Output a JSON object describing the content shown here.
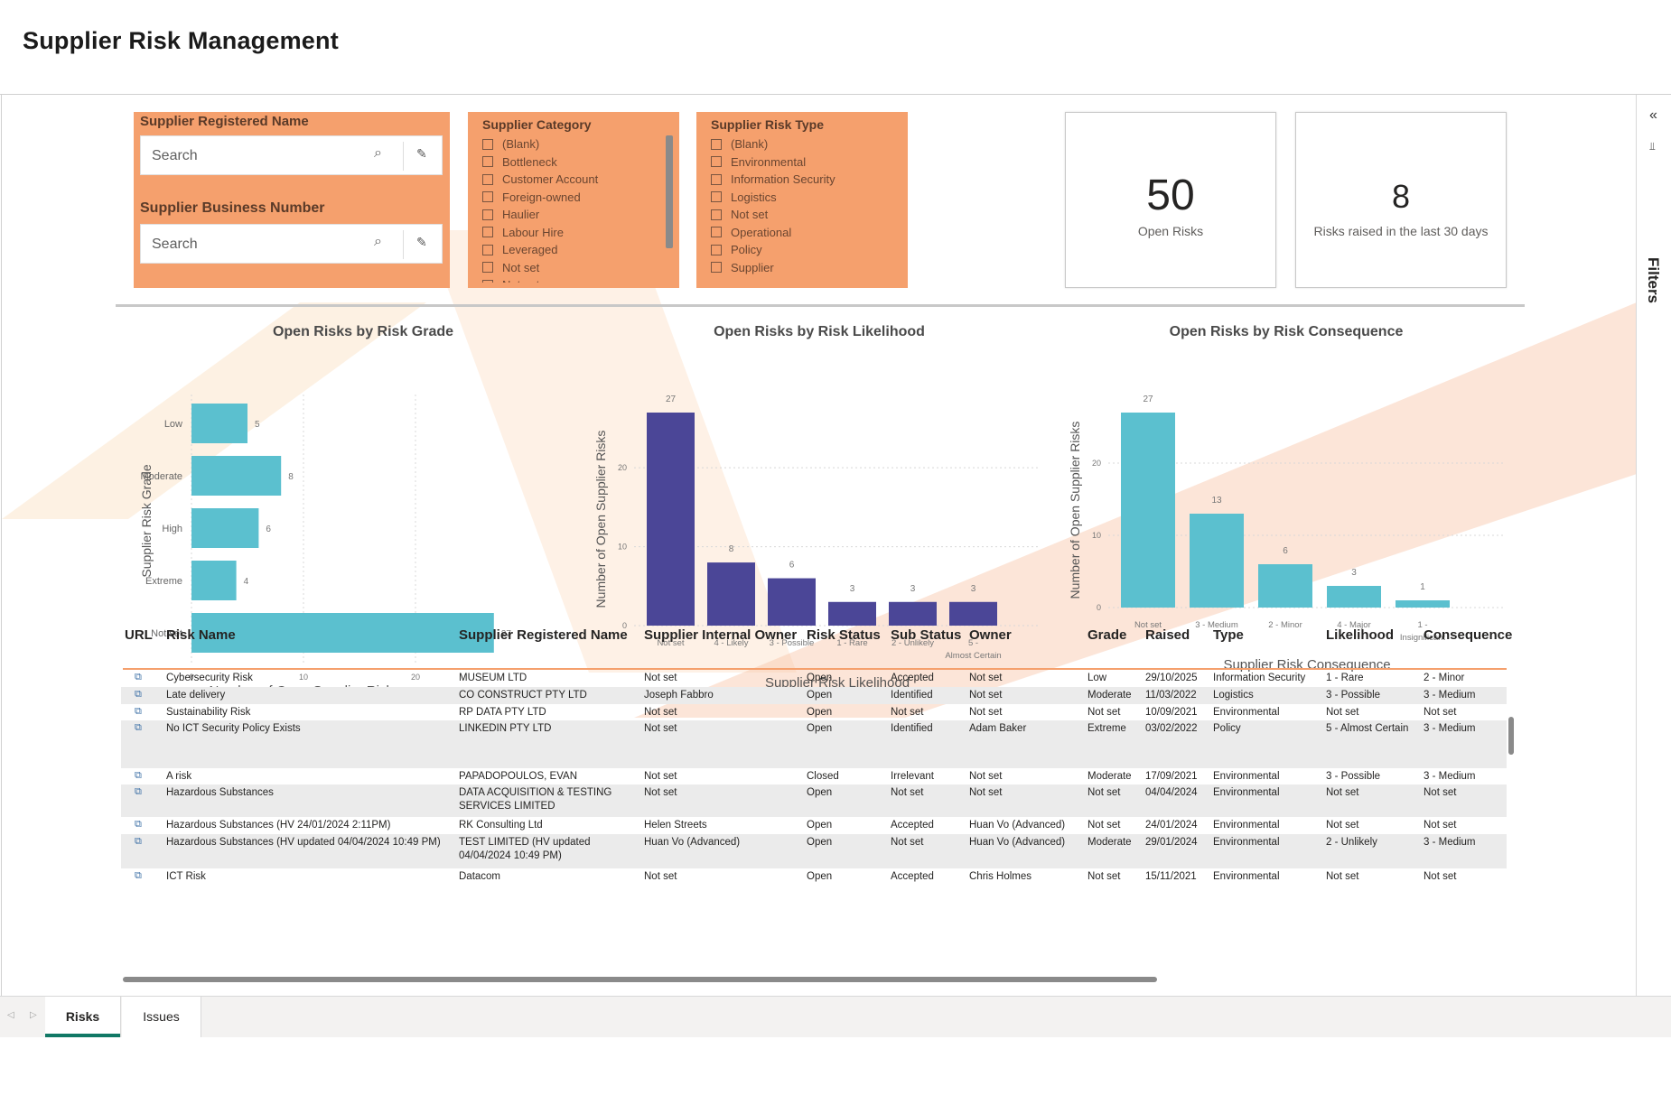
{
  "app": {
    "title": "Supplier Risk Management"
  },
  "filters_pane": {
    "label": "Filters",
    "collapse_icon": "double-chevron-left-icon",
    "filter_icon": "funnel-icon"
  },
  "slicers": {
    "registered_name": {
      "title": "Supplier Registered Name",
      "placeholder": "Search"
    },
    "business_number": {
      "title": "Supplier Business Number",
      "placeholder": "Search"
    },
    "category": {
      "title": "Supplier Category",
      "items": [
        "(Blank)",
        "Bottleneck",
        "Customer Account",
        "Foreign-owned",
        "Haulier",
        "Labour Hire",
        "Leveraged",
        "Not set",
        "Not set"
      ]
    },
    "risk_type": {
      "title": "Supplier Risk Type",
      "items": [
        "(Blank)",
        "Environmental",
        "Information Security",
        "Logistics",
        "Not set",
        "Operational",
        "Policy",
        "Supplier"
      ]
    }
  },
  "cards": {
    "open_risks": {
      "value": "50",
      "label": "Open Risks"
    },
    "recent_risks": {
      "value": "8",
      "label": "Risks raised in the last 30 days"
    }
  },
  "charts": {
    "grade": {
      "title": "Open Risks by Risk Grade",
      "xlabel": "Number of Open Supplier Risks",
      "ylabel": "Supplier Risk Grade"
    },
    "likelihood": {
      "title": "Open Risks by Risk Likelihood",
      "xlabel": "Supplier Risk Likelihood",
      "ylabel": "Number of Open Supplier Risks"
    },
    "consequence": {
      "title": "Open Risks by Risk Consequence",
      "xlabel": "Supplier Risk Consequence",
      "ylabel": "Number of Open Supplier Risks"
    }
  },
  "chart_data": [
    {
      "type": "bar",
      "orientation": "horizontal",
      "title": "Open Risks by Risk Grade",
      "categories": [
        "Low",
        "Moderate",
        "High",
        "Extreme",
        "Not set"
      ],
      "values": [
        5,
        8,
        6,
        4,
        27
      ],
      "xlabel": "Number of Open Supplier Risks",
      "ylabel": "Supplier Risk Grade",
      "xticks": [
        0,
        10,
        20
      ],
      "xlim": [
        0,
        28
      ],
      "color": "#5bc0cf",
      "grid": true
    },
    {
      "type": "bar",
      "title": "Open Risks by Risk Likelihood",
      "categories": [
        "Not set",
        "4 - Likely",
        "3 - Possible",
        "1 - Rare",
        "2 - Unlikely",
        "5 - Almost Certain"
      ],
      "values": [
        27,
        8,
        6,
        3,
        3,
        3
      ],
      "xlabel": "Supplier Risk Likelihood",
      "ylabel": "Number of Open Supplier Risks",
      "yticks": [
        0,
        10,
        20
      ],
      "ylim": [
        0,
        27
      ],
      "color": "#4b4697",
      "grid": true
    },
    {
      "type": "bar",
      "title": "Open Risks by Risk Consequence",
      "categories": [
        "Not set",
        "3 - Medium",
        "2 - Minor",
        "4 - Major",
        "1 - Insignificant"
      ],
      "values": [
        27,
        13,
        6,
        3,
        1
      ],
      "xlabel": "Supplier Risk Consequence",
      "ylabel": "Number of Open Supplier Risks",
      "yticks": [
        0,
        10,
        20
      ],
      "ylim": [
        0,
        27
      ],
      "color": "#5bc0cf",
      "grid": true
    }
  ],
  "table": {
    "columns": [
      "URL",
      "Risk Name",
      "Supplier Registered Name",
      "Supplier Internal Owner",
      "Risk Status",
      "Sub Status",
      "Owner",
      "Grade",
      "Raised",
      "Type",
      "Likelihood",
      "Consequence"
    ],
    "rows": [
      [
        "",
        "Cybersecurity Risk",
        "MUSEUM LTD",
        "Not set",
        "Open",
        "Accepted",
        "Not set",
        "Low",
        "29/10/2025",
        "Information Security",
        "1 - Rare",
        "2 - Minor"
      ],
      [
        "",
        "Late delivery",
        "CO CONSTRUCT PTY LTD",
        "Joseph Fabbro",
        "Open",
        "Identified",
        "Not set",
        "Moderate",
        "11/03/2022",
        "Logistics",
        "3 - Possible",
        "3 - Medium"
      ],
      [
        "",
        "Sustainability Risk",
        "RP DATA PTY LTD",
        "Not set",
        "Open",
        "Not set",
        "Not set",
        "Not set",
        "10/09/2021",
        "Environmental",
        "Not set",
        "Not set"
      ],
      [
        "",
        "No ICT Security Policy Exists",
        "LINKEDIN PTY LTD",
        "Not set",
        "Open",
        "Identified",
        "Adam Baker",
        "Extreme",
        "03/02/2022",
        "Policy",
        "5 - Almost Certain",
        "3 - Medium"
      ],
      [
        "",
        "A risk",
        "PAPADOPOULOS, EVAN",
        "Not set",
        "Closed",
        "Irrelevant",
        "Not set",
        "Moderate",
        "17/09/2021",
        "Environmental",
        "3 - Possible",
        "3 - Medium"
      ],
      [
        "",
        "Hazardous Substances",
        "DATA ACQUISITION & TESTING SERVICES LIMITED",
        "Not set",
        "Open",
        "Not set",
        "Not set",
        "Not set",
        "04/04/2024",
        "Environmental",
        "Not set",
        "Not set"
      ],
      [
        "",
        "Hazardous Substances (HV 24/01/2024 2:11PM)",
        "RK Consulting Ltd",
        "Helen Streets",
        "Open",
        "Accepted",
        "Huan Vo (Advanced)",
        "Not set",
        "24/01/2024",
        "Environmental",
        "Not set",
        "Not set"
      ],
      [
        "",
        "Hazardous Substances (HV updated 04/04/2024 10:49 PM)",
        "TEST LIMITED (HV updated 04/04/2024 10:49 PM)",
        "Huan Vo (Advanced)",
        "Open",
        "Not set",
        "Huan Vo (Advanced)",
        "Moderate",
        "29/01/2024",
        "Environmental",
        "2 - Unlikely",
        "3 - Medium"
      ],
      [
        "",
        "ICT Risk",
        "Datacom",
        "Not set",
        "Open",
        "Accepted",
        "Chris Holmes",
        "Not set",
        "15/11/2021",
        "Environmental",
        "Not set",
        "Not set"
      ]
    ]
  },
  "tabs": [
    "Risks",
    "Issues"
  ],
  "active_tab": "Risks",
  "colors": {
    "slicer_bg": "#f5a06d",
    "accent": "#117865",
    "bar_teal": "#5bc0cf",
    "bar_purple": "#4b4697"
  }
}
